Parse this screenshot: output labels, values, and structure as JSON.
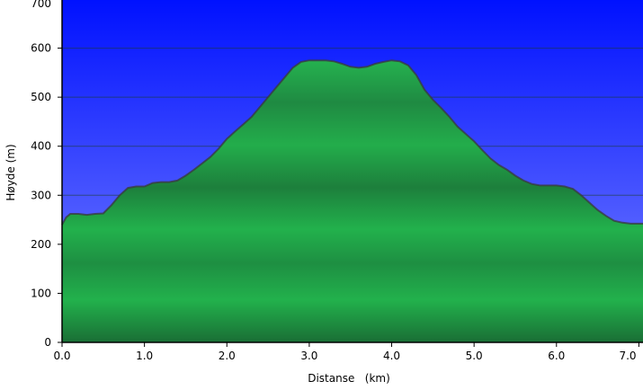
{
  "chart_data": {
    "type": "area",
    "xlabel": "Distanse   (km)",
    "ylabel": "Høyde (m)",
    "xlim": [
      0,
      7.05
    ],
    "ylim": [
      0,
      700
    ],
    "x_ticks": [
      0,
      1,
      2,
      3,
      4,
      5,
      6,
      7
    ],
    "x_tick_labels": [
      "0.0",
      "1.0",
      "2.0",
      "3.0",
      "4.0",
      "5.0",
      "6.0",
      "7.0"
    ],
    "y_ticks": [
      0,
      100,
      200,
      300,
      400,
      500,
      600,
      700
    ],
    "y_tick_labels": [
      "0",
      "100",
      "200",
      "300",
      "400",
      "500",
      "600",
      "700"
    ],
    "grid": true,
    "legend": "none",
    "colors": {
      "sky_top": "#0011ff",
      "sky_bottom": "#7c86ff",
      "area_light": "#22b14c",
      "area_dark": "#1c7a3a",
      "profile_line": "#3a3a3a"
    },
    "series": [
      {
        "x": [
          0.0,
          0.05,
          0.1,
          0.2,
          0.3,
          0.4,
          0.5,
          0.6,
          0.7,
          0.8,
          0.9,
          1.0,
          1.1,
          1.2,
          1.3,
          1.4,
          1.5,
          1.6,
          1.7,
          1.8,
          1.9,
          2.0,
          2.1,
          2.2,
          2.3,
          2.4,
          2.5,
          2.6,
          2.7,
          2.8,
          2.9,
          3.0,
          3.1,
          3.2,
          3.3,
          3.4,
          3.5,
          3.6,
          3.7,
          3.8,
          3.9,
          4.0,
          4.1,
          4.2,
          4.3,
          4.4,
          4.5,
          4.6,
          4.7,
          4.8,
          4.9,
          5.0,
          5.1,
          5.2,
          5.3,
          5.4,
          5.5,
          5.6,
          5.7,
          5.8,
          5.9,
          6.0,
          6.1,
          6.2,
          6.3,
          6.4,
          6.5,
          6.6,
          6.7,
          6.8,
          6.9,
          7.0,
          7.05
        ],
        "values": [
          240,
          255,
          262,
          262,
          260,
          262,
          263,
          280,
          300,
          315,
          318,
          318,
          325,
          327,
          327,
          330,
          340,
          352,
          365,
          378,
          395,
          415,
          430,
          445,
          460,
          480,
          500,
          520,
          540,
          560,
          572,
          575,
          575,
          575,
          573,
          568,
          562,
          560,
          562,
          568,
          572,
          575,
          573,
          565,
          545,
          515,
          495,
          478,
          460,
          440,
          425,
          410,
          392,
          375,
          362,
          352,
          340,
          330,
          323,
          320,
          320,
          320,
          318,
          313,
          300,
          285,
          270,
          258,
          248,
          244,
          242,
          242,
          242
        ]
      }
    ]
  }
}
